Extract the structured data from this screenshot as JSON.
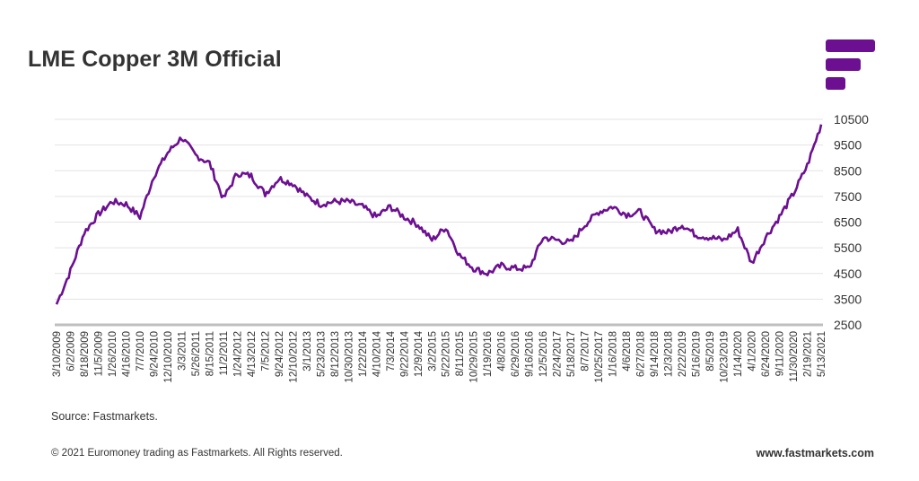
{
  "brand": {
    "logo_icon": "fastmarkets-logo-bars",
    "accent_color": "#6c0f91"
  },
  "footer": {
    "source": "Source: Fastmarkets.",
    "copyright": "© 2021 Euromoney trading as Fastmarkets. All Rights reserved.",
    "website": "www.fastmarkets.com"
  },
  "chart_data": {
    "type": "line",
    "title": "LME Copper 3M Official",
    "xlabel": "",
    "ylabel": "",
    "ylim": [
      2500,
      10500
    ],
    "yticks": [
      2500,
      3500,
      4500,
      5500,
      6500,
      7500,
      8500,
      9500,
      10500
    ],
    "yaxis_position": "right",
    "grid": true,
    "legend": "none",
    "line_color": "#6c0f91",
    "gridline_color": "#e3e3e3",
    "baseline_color": "#bfbfbf",
    "categories": [
      "3/10/2009",
      "6/2/2009",
      "8/18/2009",
      "11/5/2009",
      "1/26/2010",
      "4/16/2010",
      "7/7/2010",
      "9/24/2010",
      "12/10/2010",
      "3/3/2011",
      "5/26/2011",
      "8/15/2011",
      "11/2/2011",
      "1/24/2012",
      "4/13/2012",
      "7/5/2012",
      "9/24/2012",
      "12/10/2012",
      "3/1/2013",
      "5/23/2013",
      "8/12/2013",
      "10/30/2013",
      "1/22/2014",
      "4/10/2014",
      "7/3/2014",
      "9/22/2014",
      "12/9/2014",
      "3/2/2015",
      "5/22/2015",
      "8/11/2015",
      "10/29/2015",
      "1/19/2016",
      "4/8/2016",
      "6/29/2016",
      "9/16/2016",
      "12/5/2016",
      "2/24/2017",
      "5/18/2017",
      "8/7/2017",
      "10/25/2017",
      "1/16/2018",
      "4/6/2018",
      "6/27/2018",
      "9/14/2018",
      "12/3/2018",
      "2/22/2019",
      "5/16/2019",
      "8/5/2019",
      "10/23/2019",
      "1/14/2020",
      "4/1/2020",
      "6/24/2020",
      "9/11/2020",
      "11/30/2020",
      "2/19/2021",
      "5/13/2021"
    ],
    "series": [
      {
        "name": "LME Copper 3M Official",
        "values": [
          3300,
          4600,
          6100,
          6800,
          7300,
          7200,
          6700,
          8300,
          9200,
          9800,
          9100,
          8800,
          7400,
          8400,
          8300,
          7600,
          8200,
          8000,
          7500,
          7200,
          7300,
          7300,
          7100,
          6700,
          7100,
          6700,
          6400,
          5800,
          6300,
          5200,
          4700,
          4500,
          4800,
          4700,
          4700,
          5900,
          5800,
          5700,
          6400,
          6900,
          7100,
          6800,
          6900,
          6200,
          6100,
          6400,
          6000,
          5900,
          5800,
          6200,
          4900,
          5900,
          6700,
          7600,
          8700,
          10300
        ]
      }
    ]
  }
}
